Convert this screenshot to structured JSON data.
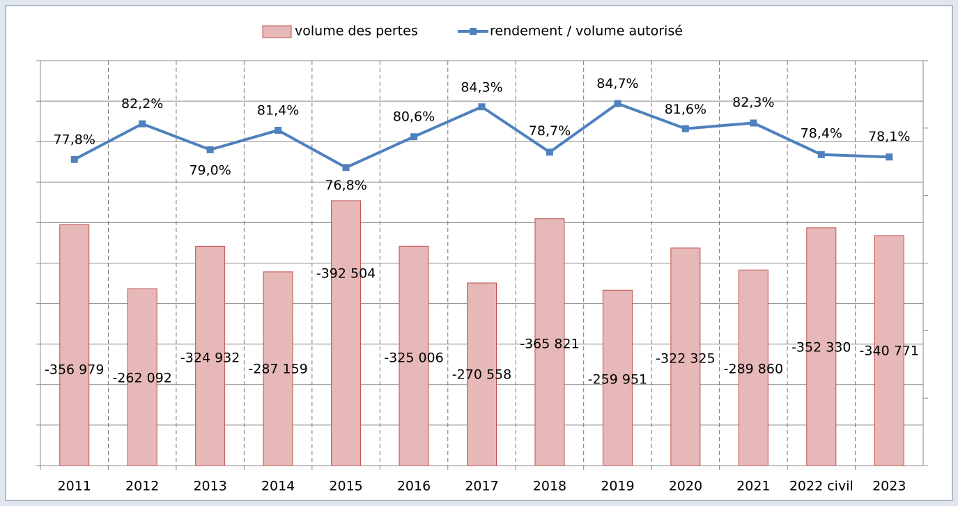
{
  "chart_data": {
    "type": "bar-line",
    "categories": [
      "2011",
      "2012",
      "2013",
      "2014",
      "2015",
      "2016",
      "2017",
      "2018",
      "2019",
      "2020",
      "2021",
      "2022 civil",
      "2023"
    ],
    "series": [
      {
        "name": "volume des pertes",
        "type": "bar",
        "color": "#e6b8b7",
        "stroke": "#c0504d",
        "values": [
          -356979,
          -262092,
          -324932,
          -287159,
          -392504,
          -325006,
          -270558,
          -365821,
          -259951,
          -322325,
          -289860,
          -352330,
          -340771
        ],
        "value_labels": [
          "-356 979",
          "-262 092",
          "-324 932",
          "-287 159",
          "-392 504",
          "-325 006",
          "-270 558",
          "-365 821",
          "-259 951",
          "-322 325",
          "-289 860",
          "-352 330",
          "-340 771"
        ]
      },
      {
        "name": "rendement / volume autorisé",
        "type": "line",
        "axis": "y2",
        "color": "#4f81bd",
        "values": [
          77.8,
          82.2,
          79.0,
          81.4,
          76.8,
          80.6,
          84.3,
          78.7,
          84.7,
          81.6,
          82.3,
          78.4,
          78.1
        ],
        "value_labels": [
          "77,8%",
          "82,2%",
          "79,0%",
          "81,4%",
          "76,8%",
          "80,6%",
          "84,3%",
          "78,7%",
          "84,7%",
          "81,6%",
          "82,3%",
          "78,4%",
          "78,1%"
        ]
      }
    ],
    "ylim": [
      0,
      -600000
    ],
    "yticks": [
      0,
      -60000,
      -120000,
      -180000,
      -240000,
      -300000,
      -360000,
      -420000,
      -480000,
      -540000,
      -600000
    ],
    "y2lim": [
      40,
      90
    ],
    "y2ticks": [
      40,
      48.33,
      56.67,
      65,
      73.33,
      81.67,
      90
    ],
    "grid": true,
    "legend": "top"
  }
}
